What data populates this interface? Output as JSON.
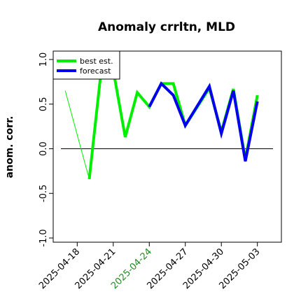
{
  "chart_data": {
    "type": "line",
    "title": "Anomaly crrltn, MLD",
    "ylabel": "anom. corr.",
    "xlabel": "",
    "ylim": [
      -1.0,
      1.0
    ],
    "yticks": [
      {
        "value": -1.0,
        "label": "-1.0"
      },
      {
        "value": -0.5,
        "label": "-0.5"
      },
      {
        "value": 0.0,
        "label": "0.0"
      },
      {
        "value": 0.5,
        "label": "0.5"
      },
      {
        "value": 1.0,
        "label": "1.0"
      }
    ],
    "xticks": [
      {
        "date": "2025-04-18",
        "label": "2025-04-18",
        "color": "#000000"
      },
      {
        "date": "2025-04-21",
        "label": "2025-04-21",
        "color": "#000000"
      },
      {
        "date": "2025-04-24",
        "label": "2025-04-24",
        "color": "#228b22"
      },
      {
        "date": "2025-04-27",
        "label": "2025-04-27",
        "color": "#000000"
      },
      {
        "date": "2025-04-30",
        "label": "2025-04-30",
        "color": "#000000"
      },
      {
        "date": "2025-05-03",
        "label": "2025-05-03",
        "color": "#000000"
      }
    ],
    "xlim": [
      "2025-04-16",
      "2025-05-05"
    ],
    "reference_line": 0.0,
    "grid": false,
    "legend": {
      "position": "top-left",
      "entries": [
        "best est.",
        "forecast"
      ]
    },
    "series": [
      {
        "name": "best est.",
        "color": "#00ee00",
        "x": [
          "2025-04-19",
          "2025-04-20",
          "2025-04-21",
          "2025-04-22",
          "2025-04-23",
          "2025-04-24",
          "2025-04-25",
          "2025-04-26",
          "2025-04-27",
          "2025-04-29",
          "2025-04-30",
          "2025-05-01",
          "2025-05-02",
          "2025-05-03"
        ],
        "y": [
          -0.34,
          0.88,
          0.88,
          0.13,
          0.63,
          0.47,
          0.73,
          0.73,
          0.26,
          0.68,
          0.19,
          0.67,
          -0.12,
          0.6
        ]
      },
      {
        "name": "forecast",
        "color": "#0000ee",
        "x": [
          "2025-04-24",
          "2025-04-25",
          "2025-04-26",
          "2025-04-27",
          "2025-04-29",
          "2025-04-30",
          "2025-05-01",
          "2025-05-02",
          "2025-05-03"
        ],
        "y": [
          0.47,
          0.73,
          0.6,
          0.26,
          0.7,
          0.17,
          0.65,
          -0.14,
          0.53
        ]
      },
      {
        "name": "",
        "color": "#00ee00",
        "thin": true,
        "x": [
          "2025-04-17",
          "2025-04-19"
        ],
        "y": [
          0.65,
          -0.34
        ]
      }
    ]
  }
}
